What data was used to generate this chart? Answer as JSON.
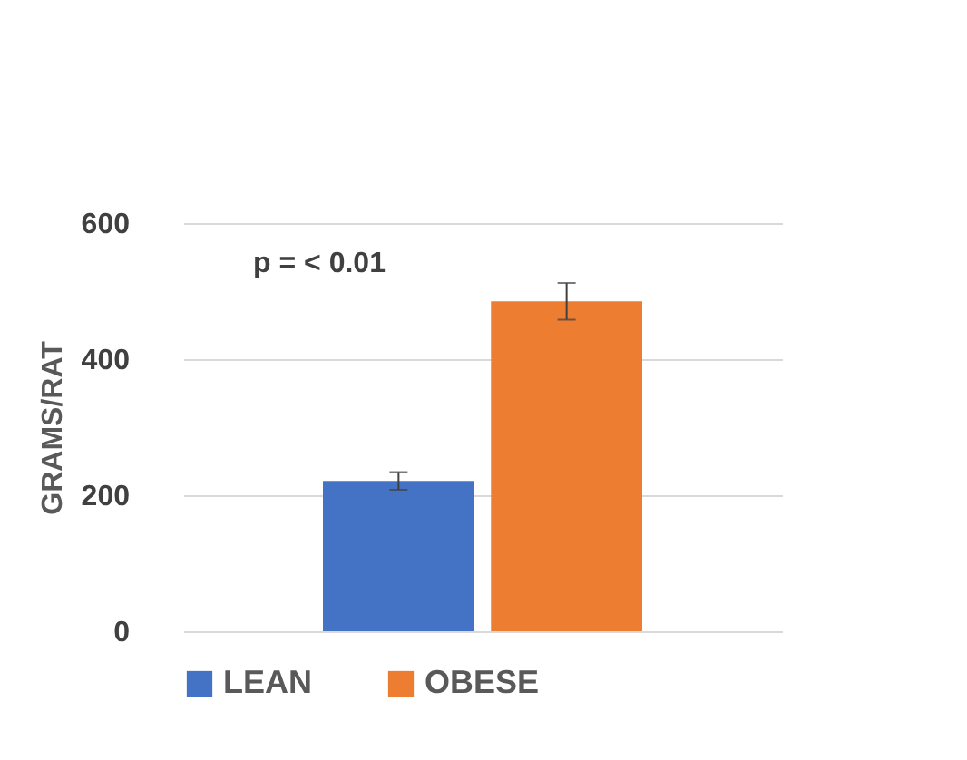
{
  "chart_data": {
    "type": "bar",
    "categories": [
      null
    ],
    "series": [
      {
        "name": "LEAN",
        "color": "#4472c4",
        "values": [
          221
        ],
        "errors": [
          13
        ]
      },
      {
        "name": "OBESE",
        "color": "#ed7d31",
        "values": [
          485
        ],
        "errors": [
          27
        ]
      }
    ],
    "ylabel": "GRAMS/RAT",
    "ylim": [
      0,
      600
    ],
    "yticks": [
      0,
      200,
      400,
      600
    ],
    "grid": "y",
    "legend": "bottom",
    "annotations": [
      "p = < 0.01"
    ]
  }
}
